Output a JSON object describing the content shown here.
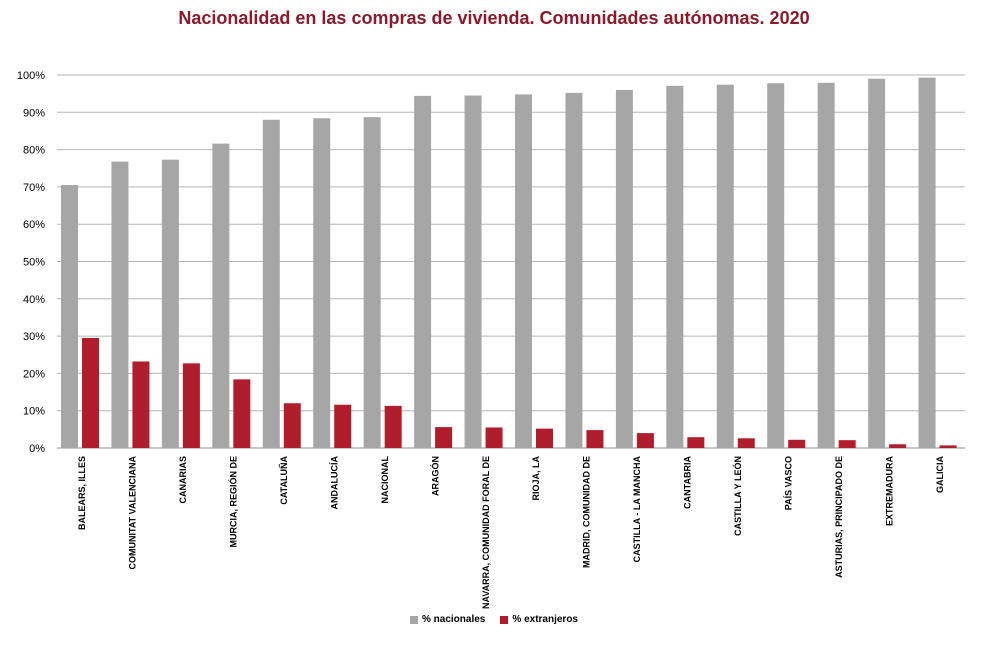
{
  "chart_data": {
    "type": "bar",
    "title": "Nacionalidad  en las compras de vivienda. Comunidades  autónomas.  2020",
    "title_color": "#8b1a2b",
    "categories": [
      "BALEARS, ILLES",
      "COMUNITAT VALENCIANA",
      "CANARIAS",
      "MURCIA, REGIÓN DE",
      "CATALUÑA",
      "ANDALUCÍA",
      "NACIONAL",
      "ARAGÓN",
      "NAVARRA, COMUNIDAD FORAL DE",
      "RIOJA, LA",
      "MADRID, COMUNIDAD DE",
      "CASTILLA - LA MANCHA",
      "CANTABRIA",
      "CASTILLA Y LEÓN",
      "PAÍS VASCO",
      "ASTURIAS, PRINCIPADO DE",
      "EXTREMADURA",
      "GALICIA"
    ],
    "series": [
      {
        "name": "% nacionales",
        "color": "#a6a6a6",
        "values": [
          70.5,
          76.8,
          77.3,
          81.6,
          88.0,
          88.4,
          88.7,
          94.4,
          94.5,
          94.8,
          95.2,
          96.0,
          97.1,
          97.4,
          97.8,
          97.9,
          99.0,
          99.3
        ]
      },
      {
        "name": "% extranjeros",
        "color": "#b01e2e",
        "values": [
          29.5,
          23.2,
          22.7,
          18.4,
          12.0,
          11.6,
          11.3,
          5.6,
          5.5,
          5.2,
          4.8,
          4.0,
          2.9,
          2.6,
          2.2,
          2.1,
          1.0,
          0.7
        ]
      }
    ],
    "ylim": [
      0,
      100
    ],
    "yticks": [
      "0%",
      "10%",
      "20%",
      "30%",
      "40%",
      "50%",
      "60%",
      "70%",
      "80%",
      "90%",
      "100%"
    ],
    "grid": true,
    "legend_position": "bottom"
  }
}
